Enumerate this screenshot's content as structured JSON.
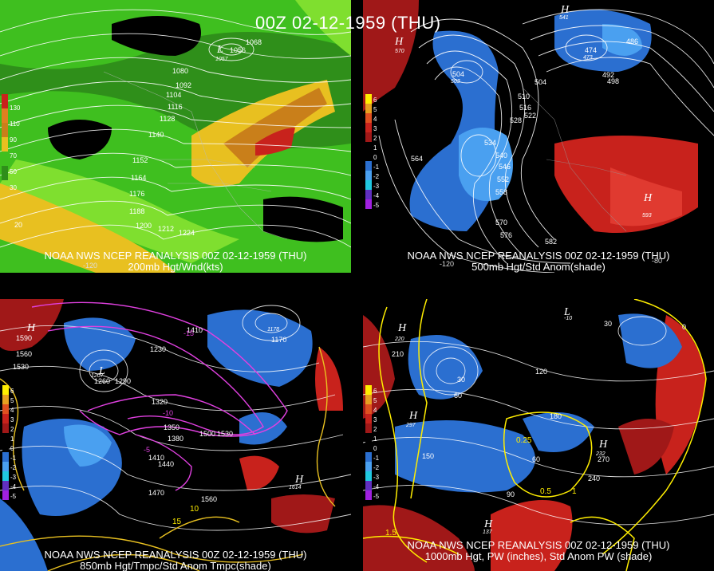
{
  "title": "00Z 02-12-1959 (THU)",
  "panels": [
    {
      "line1": "NOAA NWS NCEP REANALYSIS 00Z 02-12-1959 (THU)",
      "line2": "200mb Hgt/Wnd(kts)",
      "legend": [
        "130",
        "110",
        "90",
        "70",
        "50",
        "30"
      ],
      "contours": [
        "1068",
        "1056",
        "1080",
        "1092",
        "1104",
        "1116",
        "1128",
        "1140",
        "1152",
        "1164",
        "1176",
        "1188",
        "1200",
        "1212",
        "1224"
      ],
      "extrema": [
        "1057"
      ],
      "other": [
        "20"
      ],
      "lon": [
        "-120"
      ]
    },
    {
      "line1": "NOAA NWS NCEP REANALYSIS 00Z 02-12-1959 (THU)",
      "line2": "500mb Hgt/Std Anom(shade)",
      "legend": [
        "6",
        "5",
        "4",
        "3",
        "2",
        "1",
        "0",
        "-1",
        "-2",
        "-3",
        "-4",
        "-5"
      ],
      "contours": [
        "504",
        "510",
        "516",
        "522",
        "528",
        "534",
        "540",
        "546",
        "552",
        "558",
        "564",
        "570",
        "576",
        "582",
        "486",
        "492",
        "498",
        "474"
      ],
      "extrema": [
        "570",
        "593",
        "503",
        "473",
        "541",
        "504"
      ],
      "lon": [
        "-120",
        "-80"
      ]
    },
    {
      "line1": "NOAA NWS NCEP REANALYSIS 00Z 02-12-1959 (THU)",
      "line2": "850mb Hgt/Tmpc/Std Anom Tmpc(shade)",
      "legend": [
        "6",
        "5",
        "4",
        "3",
        "2",
        "1",
        "0",
        "-1",
        "-2",
        "-3",
        "-4",
        "-5"
      ],
      "contours": [
        "1590",
        "1560",
        "1530",
        "1260",
        "1290",
        "1320",
        "1350",
        "1380",
        "1410",
        "1440",
        "1470",
        "1500",
        "1530",
        "1560",
        "1170",
        "1230",
        "1410"
      ],
      "extrema": [
        "1614",
        "1207",
        "1178"
      ],
      "temps": [
        "-15",
        "-10",
        "-5",
        "10",
        "15"
      ],
      "lon": []
    },
    {
      "line1": "NOAA NWS NCEP REANALYSIS 00Z 02-12-1959 (THU)",
      "line2": "1000mb Hgt, PW (inches), Std Anom PW (shade)",
      "legend": [
        "6",
        "5",
        "4",
        "3",
        "2",
        "1",
        "0",
        "-1",
        "-2",
        "-3",
        "-4",
        "-5"
      ],
      "contours": [
        "30",
        "60",
        "90",
        "120",
        "150",
        "180",
        "210",
        "240",
        "270",
        "0",
        "30",
        "60"
      ],
      "extrema": [
        "220",
        "297",
        "232",
        "137",
        "-10"
      ],
      "pw": [
        "0.25",
        "0.5",
        "1",
        "1.5"
      ],
      "lon": []
    }
  ],
  "colors": {
    "green_dark": "#2f8f1a",
    "green": "#3fbf1f",
    "green_light": "#7fdf2f",
    "yellow": "#e8c020",
    "orange": "#c97f1a",
    "red": "#c8221c",
    "blue": "#2b6fd0",
    "lightblue": "#4aa0f0",
    "darkred": "#a01818",
    "magenta": "#e040e0",
    "pwyellow": "#ffee00"
  }
}
